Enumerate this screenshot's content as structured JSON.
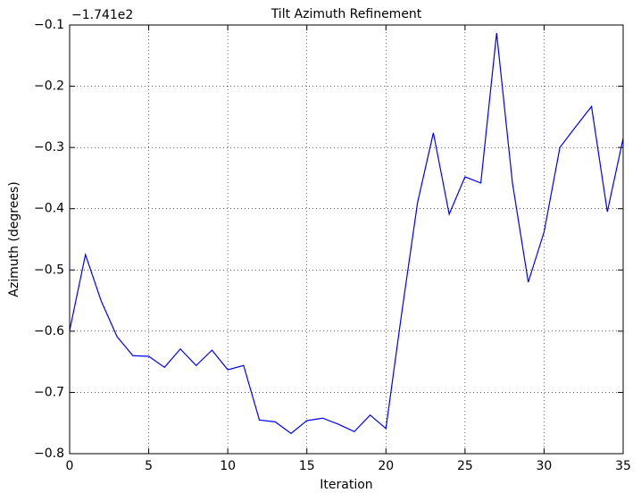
{
  "chart_data": {
    "type": "line",
    "title": "Tilt Azimuth Refinement",
    "x_label": "Iteration",
    "y_label": "Azimuth (degrees)",
    "offset_text": "−1.741e2",
    "x": [
      0,
      1,
      2,
      3,
      4,
      5,
      6,
      7,
      8,
      9,
      10,
      11,
      12,
      13,
      14,
      15,
      16,
      17,
      18,
      19,
      20,
      21,
      22,
      23,
      24,
      25,
      26,
      27,
      28,
      29,
      30,
      31,
      32,
      33,
      34,
      35
    ],
    "series": [
      {
        "name": "Azimuth",
        "color": "#0000ff",
        "values": [
          -0.599,
          -0.475,
          -0.551,
          -0.609,
          -0.64,
          -0.641,
          -0.659,
          -0.629,
          -0.656,
          -0.631,
          -0.663,
          -0.656,
          -0.745,
          -0.748,
          -0.767,
          -0.746,
          -0.742,
          -0.752,
          -0.764,
          -0.737,
          -0.759,
          -0.57,
          -0.39,
          -0.276,
          -0.409,
          -0.348,
          -0.358,
          -0.113,
          -0.358,
          -0.52,
          -0.438,
          -0.3,
          -0.266,
          -0.233,
          -0.405,
          -0.285
        ]
      }
    ],
    "xlim": [
      0,
      35
    ],
    "xticks": [
      0,
      5,
      10,
      15,
      20,
      25,
      30,
      35
    ],
    "ylim": [
      -0.8,
      -0.1
    ],
    "yticks": [
      {
        "value": -0.8,
        "label": "−0.8"
      },
      {
        "value": -0.7,
        "label": "−0.7"
      },
      {
        "value": -0.6,
        "label": "−0.6"
      },
      {
        "value": -0.5,
        "label": "−0.5"
      },
      {
        "value": -0.4,
        "label": "−0.4"
      },
      {
        "value": -0.3,
        "label": "−0.3"
      },
      {
        "value": -0.2,
        "label": "−0.2"
      },
      {
        "value": -0.1,
        "label": "−0.1"
      }
    ],
    "grid": true
  }
}
